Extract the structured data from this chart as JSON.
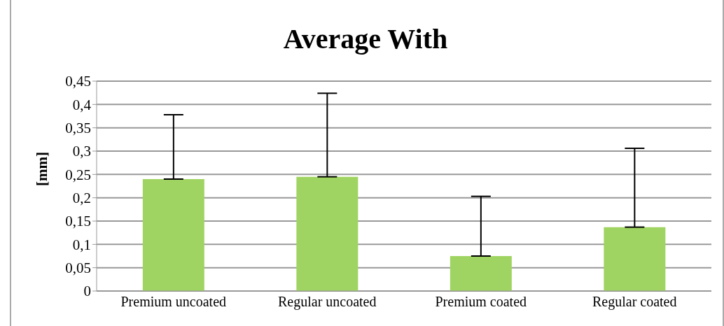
{
  "chart_data": {
    "type": "bar",
    "title": "Average With",
    "ylabel": "[mm]",
    "categories": [
      "Premium uncoated",
      "Regular uncoated",
      "Premium coated",
      "Regular coated"
    ],
    "values": [
      0.24,
      0.245,
      0.075,
      0.137
    ],
    "errors": [
      [
        0.24,
        0.378
      ],
      [
        0.245,
        0.424
      ],
      [
        0.075,
        0.203
      ],
      [
        0.137,
        0.306
      ]
    ],
    "color": "#a0d462",
    "ylim": [
      0,
      0.45
    ],
    "yticks": [
      {
        "value": 0,
        "label": "0"
      },
      {
        "value": 0.05,
        "label": "0,05"
      },
      {
        "value": 0.1,
        "label": "0,1"
      },
      {
        "value": 0.15,
        "label": "0,15"
      },
      {
        "value": 0.2,
        "label": "0,2"
      },
      {
        "value": 0.25,
        "label": "0,25"
      },
      {
        "value": 0.3,
        "label": "0,3"
      },
      {
        "value": 0.35,
        "label": "0,35"
      },
      {
        "value": 0.4,
        "label": "0,4"
      },
      {
        "value": 0.45,
        "label": "0,45"
      }
    ],
    "grid": "y",
    "legend": false
  }
}
